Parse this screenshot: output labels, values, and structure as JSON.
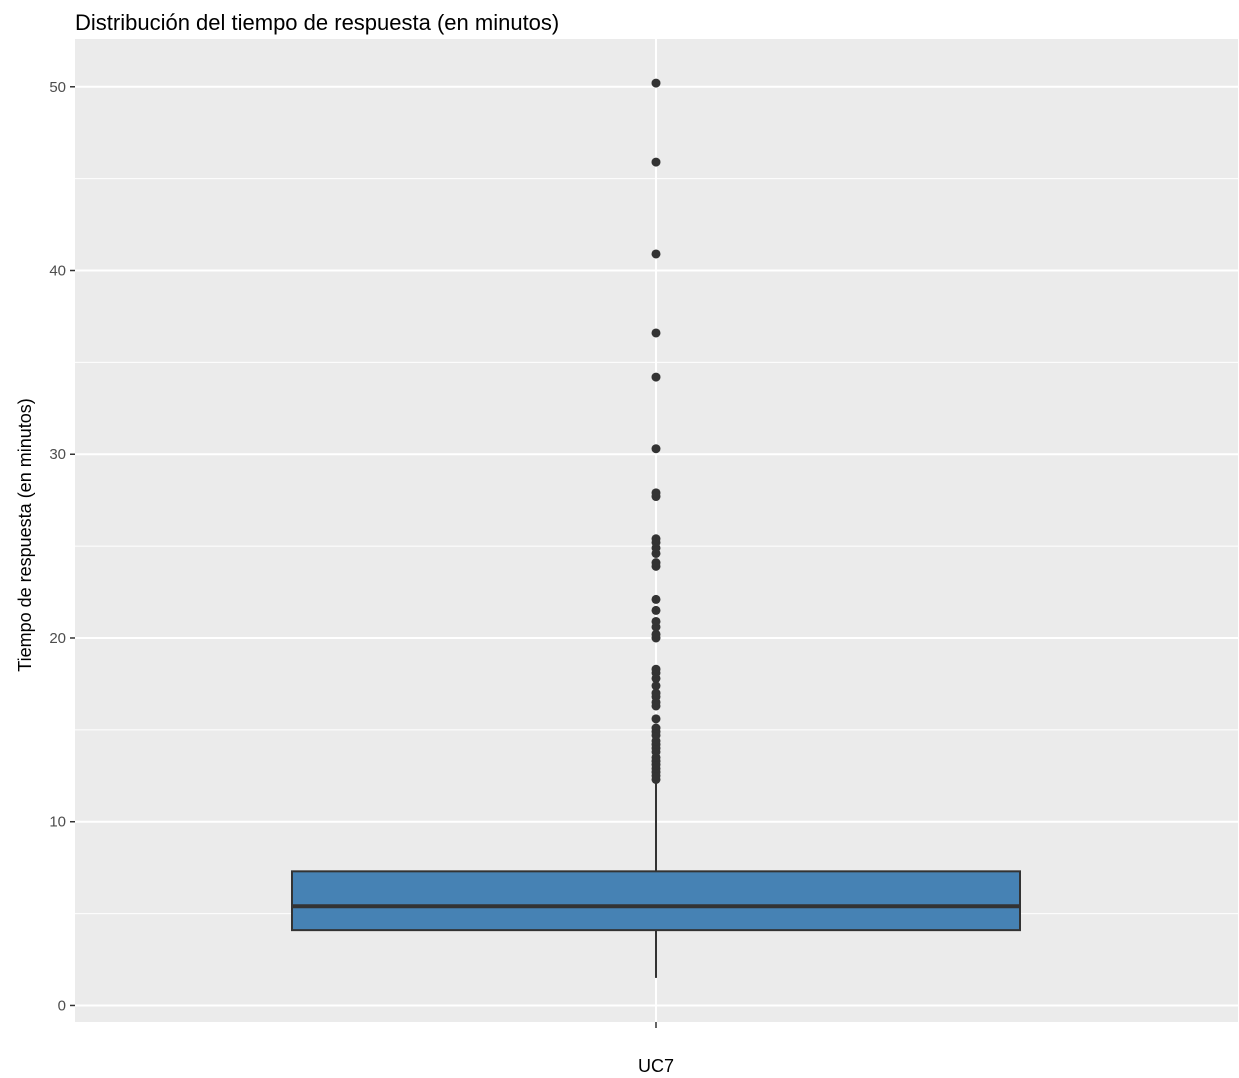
{
  "chart_data": {
    "type": "box",
    "title": "Distribución del tiempo de respuesta (en minutos)",
    "xlabel": "UC7",
    "ylabel": "Tiempo de respuesta (en minutos)",
    "categories": [
      ""
    ],
    "yticks": [
      0,
      10,
      20,
      30,
      40,
      50
    ],
    "ylim": [
      -0.9,
      52.6
    ],
    "grid": true,
    "colors": {
      "panel": "#ebebeb",
      "grid": "#ffffff",
      "box_fill": "#4682b4",
      "box_stroke": "#333333",
      "points": "#333333"
    },
    "box": {
      "whisker_low": 1.5,
      "q1": 4.1,
      "median": 5.4,
      "q3": 7.3,
      "whisker_high": 12.2
    },
    "outliers": [
      12.3,
      12.5,
      12.7,
      12.9,
      13.1,
      13.3,
      13.5,
      13.8,
      14.0,
      14.2,
      14.4,
      14.7,
      14.9,
      15.1,
      15.6,
      16.3,
      16.5,
      16.8,
      17.0,
      17.4,
      17.8,
      18.1,
      18.3,
      20.0,
      20.2,
      20.6,
      20.9,
      21.5,
      22.1,
      23.9,
      24.1,
      24.6,
      24.9,
      25.2,
      25.4,
      27.7,
      27.9,
      30.3,
      34.2,
      36.6,
      40.9,
      45.9,
      50.2
    ]
  }
}
